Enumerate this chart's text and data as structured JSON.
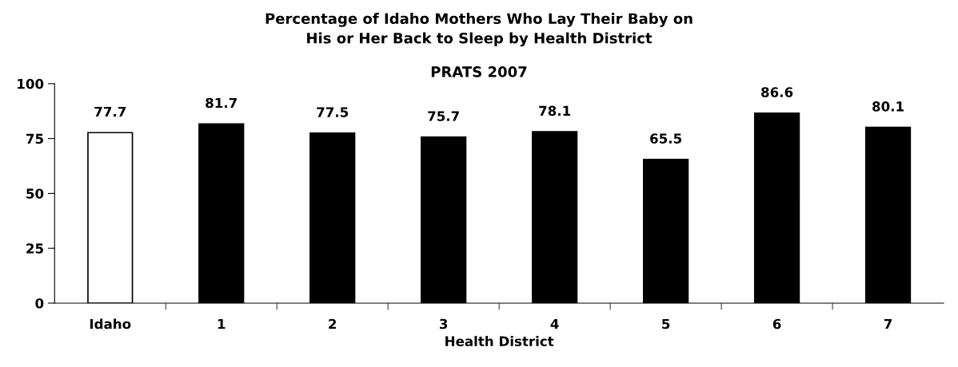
{
  "chart_data": {
    "type": "bar",
    "title": "Percentage of Idaho Mothers Who Lay Their Baby on\nHis or Her Back to Sleep by Health District",
    "subtitle": "PRATS 2007",
    "xlabel": "Health District",
    "categories": [
      "Idaho",
      "1",
      "2",
      "3",
      "4",
      "5",
      "6",
      "7"
    ],
    "values": [
      77.7,
      81.7,
      77.5,
      75.7,
      78.1,
      65.5,
      86.6,
      80.1
    ],
    "colors": [
      "#ffffff",
      "#000000",
      "#000000",
      "#000000",
      "#000000",
      "#000000",
      "#000000",
      "#000000"
    ],
    "ylim": [
      0,
      100
    ],
    "yticks": [
      0,
      25,
      50,
      75,
      100
    ],
    "grid": false,
    "legend": false,
    "data_labels": true
  }
}
